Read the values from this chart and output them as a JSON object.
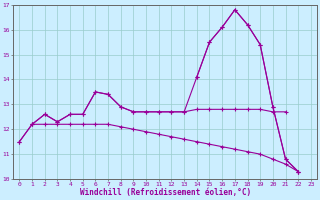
{
  "x": [
    0,
    1,
    2,
    3,
    4,
    5,
    6,
    7,
    8,
    9,
    10,
    11,
    12,
    13,
    14,
    15,
    16,
    17,
    18,
    19,
    20,
    21,
    22,
    23
  ],
  "line1": [
    11.5,
    12.2,
    12.6,
    12.3,
    12.6,
    12.6,
    13.5,
    13.4,
    12.9,
    12.7,
    12.7,
    12.7,
    12.7,
    12.7,
    12.8,
    12.8,
    12.8,
    12.8,
    12.8,
    12.8,
    12.7,
    12.7,
    null,
    null
  ],
  "line2": [
    null,
    null,
    null,
    null,
    null,
    null,
    null,
    null,
    null,
    null,
    null,
    null,
    null,
    null,
    14.1,
    15.5,
    16.1,
    16.8,
    16.2,
    15.4,
    12.9,
    10.8,
    10.3,
    null
  ],
  "line3": [
    null,
    12.2,
    12.6,
    12.3,
    12.6,
    12.6,
    13.5,
    13.4,
    12.9,
    12.7,
    12.7,
    12.7,
    12.7,
    12.7,
    14.1,
    15.5,
    16.1,
    16.8,
    16.2,
    15.4,
    12.9,
    10.8,
    10.3,
    null
  ],
  "line4": [
    11.5,
    12.2,
    12.2,
    12.2,
    12.2,
    12.2,
    12.2,
    12.2,
    12.1,
    12.0,
    11.9,
    11.8,
    11.7,
    11.6,
    11.5,
    11.4,
    11.3,
    11.2,
    11.1,
    11.0,
    10.8,
    10.6,
    10.3,
    null
  ],
  "line_color": "#990099",
  "bg_color": "#cceeff",
  "grid_color": "#99cccc",
  "axis_color": "#666666",
  "text_color": "#990099",
  "xlabel": "Windchill (Refroidissement éolien,°C)",
  "ylim": [
    10,
    17
  ],
  "xlim": [
    -0.5,
    23.5
  ],
  "yticks": [
    10,
    11,
    12,
    13,
    14,
    15,
    16,
    17
  ],
  "xticks": [
    0,
    1,
    2,
    3,
    4,
    5,
    6,
    7,
    8,
    9,
    10,
    11,
    12,
    13,
    14,
    15,
    16,
    17,
    18,
    19,
    20,
    21,
    22,
    23
  ]
}
